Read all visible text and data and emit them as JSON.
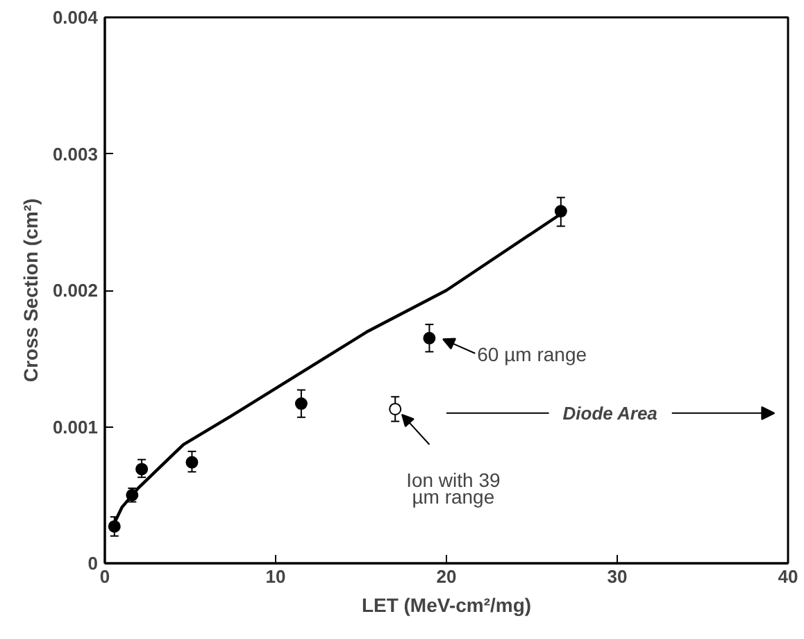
{
  "chart_data": {
    "type": "scatter",
    "xlabel": "LET (MeV-cm²/mg)",
    "ylabel": "Cross Section (cm²)",
    "xlim": [
      0,
      40
    ],
    "xticks": [
      0,
      10,
      20,
      30,
      40
    ],
    "ylim": [
      0,
      0.004
    ],
    "yticks": [
      0,
      0.001,
      0.002,
      0.003,
      0.004
    ],
    "grid": false,
    "series": [
      {
        "type": "line",
        "color": "#000000",
        "x": [
          0.5,
          1.0,
          1.95,
          4.6,
          7.4,
          15.4,
          20,
          26.7
        ],
        "values": [
          0.00028,
          0.00041,
          0.00055,
          0.00087,
          0.00108,
          0.0017,
          0.002,
          0.00256
        ]
      },
      {
        "color": "#000000",
        "marker": "circle",
        "x": [
          0.56,
          1.6,
          2.16,
          5.1,
          11.5,
          19.0,
          26.7
        ],
        "values": [
          0.00027,
          0.0005,
          0.00069,
          0.00074,
          0.00117,
          0.00165,
          0.00258
        ],
        "errors": [
          7e-05,
          5e-05,
          [
            0.00063,
            0.00076
          ],
          [
            0.00067,
            0.00082
          ],
          [
            0.00107,
            0.00127
          ],
          [
            0.00155,
            0.00175
          ],
          [
            0.00247,
            0.00268
          ]
        ]
      },
      {
        "color": "#ffffff",
        "marker": "circle",
        "x": [
          17.0
        ],
        "values": [
          0.00113
        ],
        "errors": [
          [
            0.00104,
            0.00122
          ]
        ]
      }
    ],
    "annotations": [
      "Diode Area",
      {
        "text": "60 µm range",
        "x": 19.0,
        "y": 0.00165
      },
      {
        "text": "Ion with 39\nµm range",
        "x": 17.0,
        "y": 0.00113
      }
    ]
  }
}
